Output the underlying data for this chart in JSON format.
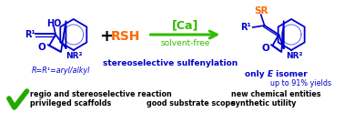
{
  "bg_color": "#ffffff",
  "fig_width": 3.78,
  "fig_height": 1.35,
  "dpi": 100,
  "reactant_HO": "HO",
  "reactant_R1": "R¹",
  "reactant_NR2": "NR²",
  "reactant_O": "O",
  "reagent": "RSH",
  "catalyst": "[Ca]",
  "condition": "solvent-free",
  "reaction_label": "stereoselective sulfenylation",
  "product_SR": "SR",
  "product_R1": "R¹",
  "product_NR2": "NR²",
  "product_O": "O",
  "selectivity_only": "only ",
  "selectivity_E": "E",
  "selectivity_rest": " isomer",
  "yield_text": "up to 91% yields",
  "sub_label": "R=R¹=aryl/alkyl",
  "bullet1a": "regio and stereoselective reaction",
  "bullet1b": "privileged scaffolds",
  "bullet2": "good substrate scope",
  "bullet3a": "new chemical entities",
  "bullet3b": "synthetic utility",
  "color_blue": "#0000cc",
  "color_green": "#33bb00",
  "color_orange": "#ff6600",
  "color_dark_green": "#33bb00",
  "color_check": "#22aa00",
  "color_black": "#000000"
}
